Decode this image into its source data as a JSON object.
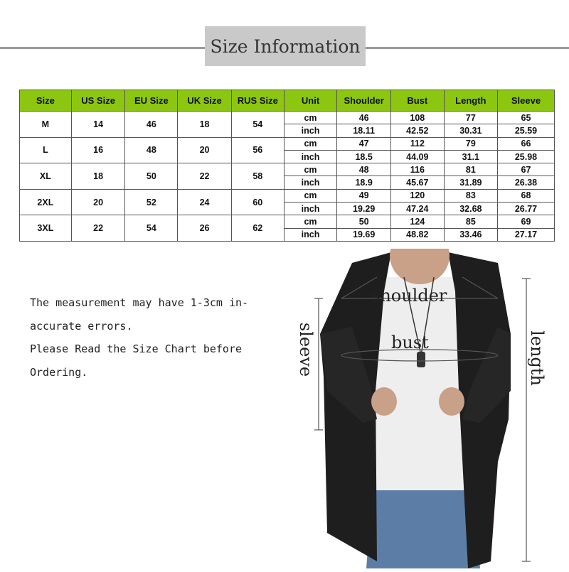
{
  "title": "Size Information",
  "table": {
    "headers": [
      "Size",
      "US Size",
      "EU Size",
      "UK Size",
      "RUS Size",
      "Unit",
      "Shoulder",
      "Bust",
      "Length",
      "Sleeve"
    ],
    "rows": [
      {
        "size": "M",
        "us": "14",
        "eu": "46",
        "uk": "18",
        "rus": "54",
        "cm": [
          "46",
          "108",
          "77",
          "65"
        ],
        "inch": [
          "18.11",
          "42.52",
          "30.31",
          "25.59"
        ]
      },
      {
        "size": "L",
        "us": "16",
        "eu": "48",
        "uk": "20",
        "rus": "56",
        "cm": [
          "47",
          "112",
          "79",
          "66"
        ],
        "inch": [
          "18.5",
          "44.09",
          "31.1",
          "25.98"
        ]
      },
      {
        "size": "XL",
        "us": "18",
        "eu": "50",
        "uk": "22",
        "rus": "58",
        "cm": [
          "48",
          "116",
          "81",
          "67"
        ],
        "inch": [
          "18.9",
          "45.67",
          "31.89",
          "26.38"
        ]
      },
      {
        "size": "2XL",
        "us": "20",
        "eu": "52",
        "uk": "24",
        "rus": "60",
        "cm": [
          "49",
          "120",
          "83",
          "68"
        ],
        "inch": [
          "19.29",
          "47.24",
          "32.68",
          "26.77"
        ]
      },
      {
        "size": "3XL",
        "us": "22",
        "eu": "54",
        "uk": "26",
        "rus": "62",
        "cm": [
          "50",
          "124",
          "85",
          "69"
        ],
        "inch": [
          "19.69",
          "48.82",
          "33.46",
          "27.17"
        ]
      }
    ],
    "unit_cm": "cm",
    "unit_inch": "inch",
    "header_color": "#8cc611"
  },
  "note": {
    "line1": "The measurement may have 1-3cm in-",
    "line2": "accurate errors.",
    "line3": "Please Read the Size Chart before",
    "line4": "Ordering."
  },
  "diagram": {
    "shoulder": "shoulder",
    "bust": "bust",
    "sleeve": "sleeve",
    "length": "length"
  }
}
